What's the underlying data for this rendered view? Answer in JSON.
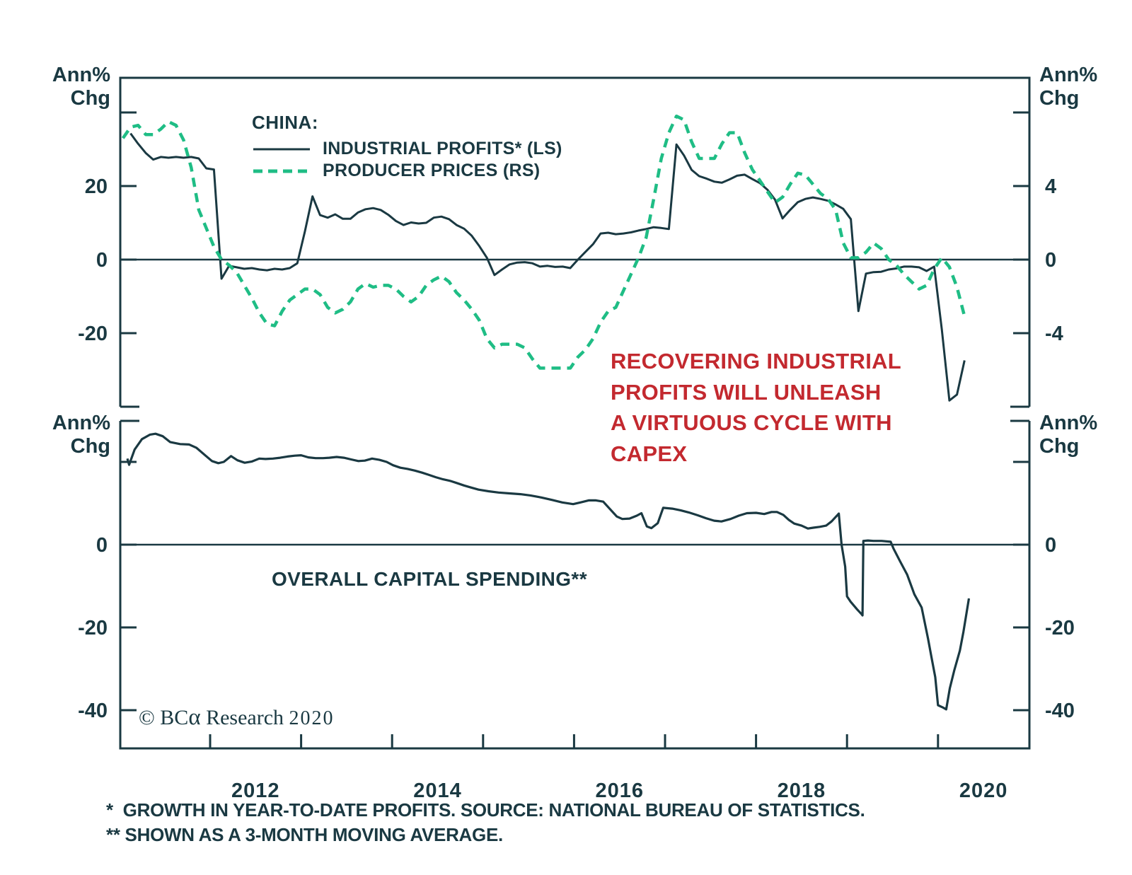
{
  "colors": {
    "ink": "#1a3942",
    "green": "#1fbd85",
    "red": "#c3292f"
  },
  "labels": {
    "axis_unit": {
      "l1": "Ann%",
      "l2": "Chg"
    },
    "legend": {
      "title": "CHINA:",
      "series1": "INDUSTRIAL PROFITS* (LS)",
      "series2": "PRODUCER PRICES (RS)"
    },
    "annotation": {
      "line1": "RECOVERING INDUSTRIAL",
      "line2": "PROFITS WILL UNLEASH",
      "line3": "A VIRTUOUS CYCLE WITH",
      "line4": "CAPEX"
    },
    "capex_label": "OVERALL CAPITAL SPENDING**",
    "copyright": {
      "prefix": "© BC",
      "alpha": "α",
      "suffix": " Research",
      "year": "2020"
    },
    "footnotes": {
      "line1": "*  GROWTH IN YEAR-TO-DATE PROFITS. SOURCE: NATIONAL BUREAU OF STATISTICS.",
      "line2": "** SHOWN AS A 3-MONTH MOVING AVERAGE."
    }
  },
  "chart_data": {
    "type": "line",
    "title": "CHINA: INDUSTRIAL PROFITS (LS) AND PRODUCER PRICES (RS); OVERALL CAPITAL SPENDING",
    "x_axis": {
      "range": [
        2010.99,
        2021.0
      ],
      "tick_years": [
        2012,
        2013,
        2014,
        2015,
        2016,
        2017,
        2018,
        2019,
        2020
      ],
      "labels": [
        "2012",
        "2014",
        "2016",
        "2018",
        "2020"
      ],
      "label_positions": [
        2012.5,
        2014.5,
        2016.5,
        2018.5,
        2020.5
      ]
    },
    "panels": [
      {
        "id": "top",
        "left_axis": {
          "label": "Ann% Chg",
          "units": "percent",
          "range": [
            -40,
            49.4
          ],
          "ticks": [
            {
              "value": 40,
              "label": ""
            },
            {
              "value": 20,
              "label": "20"
            },
            {
              "value": 0,
              "label": "0"
            },
            {
              "value": -20,
              "label": "-20"
            }
          ]
        },
        "right_axis": {
          "label": "Ann% Chg",
          "units": "percent",
          "range": [
            -8,
            9.9
          ],
          "ticks": [
            {
              "value": 8,
              "label": ""
            },
            {
              "value": 4,
              "label": "4"
            },
            {
              "value": 0,
              "label": "0"
            },
            {
              "value": -4,
              "label": "-4"
            }
          ]
        },
        "series": [
          {
            "name": "INDUSTRIAL PROFITS* (LS)",
            "axis": "left",
            "style": "solid",
            "color": "#1a3942",
            "width": 3,
            "start": 2011.125,
            "step_months": 1,
            "values": [
              34.3,
              31.5,
              29.0,
              27.2,
              27.9,
              27.7,
              27.9,
              27.7,
              27.9,
              27.5,
              24.8,
              24.5,
              -5.2,
              -1.7,
              -2.1,
              -2.5,
              -2.3,
              -2.7,
              -2.9,
              -2.5,
              -2.7,
              -2.3,
              -1.0,
              7.7,
              17.2,
              12.1,
              11.4,
              12.3,
              11.1,
              11.1,
              12.8,
              13.7,
              14.0,
              13.5,
              12.2,
              10.5,
              9.4,
              10.1,
              9.8,
              10.0,
              11.4,
              11.7,
              11.0,
              9.4,
              8.4,
              6.5,
              3.7,
              0.5,
              -4.2,
              -2.7,
              -1.3,
              -0.8,
              -0.7,
              -1.0,
              -1.9,
              -1.7,
              -2.0,
              -1.9,
              -2.3,
              0.0,
              2.1,
              4.2,
              7.1,
              7.3,
              6.9,
              7.1,
              7.4,
              7.9,
              8.3,
              8.8,
              8.6,
              8.3,
              31.3,
              28.3,
              24.4,
              22.7,
              22.0,
              21.2,
              20.9,
              21.8,
              22.8,
              23.1,
              21.9,
              20.8,
              19.0,
              16.3,
              11.2,
              13.5,
              15.6,
              16.5,
              16.9,
              16.5,
              16.0,
              15.0,
              13.8,
              11.0,
              -14.0,
              -3.8,
              -3.4,
              -3.3,
              -2.7,
              -2.4,
              -1.9,
              -1.9,
              -2.1,
              -3.1,
              -1.9,
              -19.0,
              -38.3,
              -36.7,
              -27.4
            ]
          },
          {
            "name": "PRODUCER PRICES (RS)",
            "axis": "right",
            "style": "dashed",
            "color": "#1fbd85",
            "width": 4.5,
            "start": 2011.042,
            "step_months": 1,
            "values": [
              6.6,
              7.2,
              7.3,
              6.8,
              6.8,
              7.1,
              7.5,
              7.3,
              6.5,
              5.0,
              2.7,
              1.7,
              0.7,
              0.0,
              -0.3,
              -0.7,
              -1.4,
              -2.1,
              -2.9,
              -3.5,
              -3.6,
              -2.8,
              -2.2,
              -1.9,
              -1.6,
              -1.6,
              -1.9,
              -2.6,
              -2.9,
              -2.7,
              -2.3,
              -1.6,
              -1.3,
              -1.5,
              -1.4,
              -1.4,
              -1.6,
              -2.0,
              -2.3,
              -2.0,
              -1.4,
              -1.1,
              -0.9,
              -1.2,
              -1.8,
              -2.2,
              -2.7,
              -3.3,
              -4.3,
              -4.8,
              -4.6,
              -4.6,
              -4.6,
              -4.8,
              -5.4,
              -5.9,
              -5.9,
              -5.9,
              -5.9,
              -5.9,
              -5.3,
              -4.9,
              -4.3,
              -3.4,
              -2.8,
              -2.6,
              -1.7,
              -0.8,
              0.1,
              1.2,
              3.3,
              5.5,
              6.9,
              7.8,
              7.6,
              6.4,
              5.5,
              5.5,
              5.5,
              6.3,
              6.9,
              6.9,
              5.8,
              4.9,
              4.3,
              3.7,
              3.1,
              3.4,
              4.1,
              4.7,
              4.6,
              4.1,
              3.6,
              3.3,
              2.7,
              0.9,
              0.1,
              0.1,
              0.4,
              0.9,
              0.6,
              0.0,
              -0.3,
              -0.8,
              -1.2,
              -1.6,
              -1.4,
              -0.5,
              0.1,
              -0.4,
              -1.5,
              -3.1
            ]
          }
        ]
      },
      {
        "id": "bottom",
        "left_axis": {
          "label": "Ann% Chg",
          "units": "percent",
          "range": [
            -49.2,
            29.9
          ],
          "ticks": [
            {
              "value": 20,
              "label": ""
            },
            {
              "value": 0,
              "label": "0"
            },
            {
              "value": -20,
              "label": "-20"
            },
            {
              "value": -40,
              "label": "-40"
            }
          ]
        },
        "right_axis": {
          "label": "Ann% Chg",
          "units": "percent",
          "range": [
            -49.2,
            29.9
          ],
          "ticks": [
            {
              "value": 20,
              "label": ""
            },
            {
              "value": 0,
              "label": "0"
            },
            {
              "value": -20,
              "label": "-20"
            },
            {
              "value": -40,
              "label": "-40"
            }
          ]
        },
        "series": [
          {
            "name": "OVERALL CAPITAL SPENDING**",
            "axis": "left",
            "style": "solid",
            "color": "#1a3942",
            "width": 3.2,
            "points": [
              [
                2011.09,
                20.8
              ],
              [
                2011.11,
                19.3
              ],
              [
                2011.17,
                23.0
              ],
              [
                2011.25,
                25.5
              ],
              [
                2011.34,
                26.6
              ],
              [
                2011.4,
                26.8
              ],
              [
                2011.48,
                26.2
              ],
              [
                2011.56,
                24.8
              ],
              [
                2011.67,
                24.3
              ],
              [
                2011.77,
                24.2
              ],
              [
                2011.85,
                23.4
              ],
              [
                2011.95,
                21.5
              ],
              [
                2012.02,
                20.2
              ],
              [
                2012.09,
                19.7
              ],
              [
                2012.15,
                20.0
              ],
              [
                2012.23,
                21.4
              ],
              [
                2012.3,
                20.4
              ],
              [
                2012.38,
                19.8
              ],
              [
                2012.46,
                20.1
              ],
              [
                2012.54,
                20.8
              ],
              [
                2012.61,
                20.7
              ],
              [
                2012.69,
                20.8
              ],
              [
                2012.77,
                21.0
              ],
              [
                2012.85,
                21.3
              ],
              [
                2012.93,
                21.5
              ],
              [
                2013.0,
                21.6
              ],
              [
                2013.08,
                21.1
              ],
              [
                2013.16,
                20.9
              ],
              [
                2013.24,
                20.9
              ],
              [
                2013.31,
                21.0
              ],
              [
                2013.39,
                21.2
              ],
              [
                2013.47,
                21.0
              ],
              [
                2013.55,
                20.6
              ],
              [
                2013.63,
                20.2
              ],
              [
                2013.7,
                20.3
              ],
              [
                2013.78,
                20.8
              ],
              [
                2013.86,
                20.5
              ],
              [
                2013.94,
                20.0
              ],
              [
                2014.01,
                19.2
              ],
              [
                2014.09,
                18.6
              ],
              [
                2014.17,
                18.3
              ],
              [
                2014.25,
                17.9
              ],
              [
                2014.33,
                17.4
              ],
              [
                2014.4,
                16.9
              ],
              [
                2014.48,
                16.3
              ],
              [
                2014.56,
                15.8
              ],
              [
                2014.64,
                15.4
              ],
              [
                2014.71,
                14.9
              ],
              [
                2014.79,
                14.3
              ],
              [
                2014.87,
                13.8
              ],
              [
                2014.95,
                13.3
              ],
              [
                2015.06,
                12.9
              ],
              [
                2015.17,
                12.6
              ],
              [
                2015.29,
                12.4
              ],
              [
                2015.41,
                12.2
              ],
              [
                2015.52,
                11.9
              ],
              [
                2015.64,
                11.4
              ],
              [
                2015.76,
                10.8
              ],
              [
                2015.87,
                10.2
              ],
              [
                2015.99,
                9.8
              ],
              [
                2016.07,
                10.2
              ],
              [
                2016.16,
                10.7
              ],
              [
                2016.24,
                10.7
              ],
              [
                2016.32,
                10.4
              ],
              [
                2016.39,
                8.7
              ],
              [
                2016.47,
                6.8
              ],
              [
                2016.53,
                6.2
              ],
              [
                2016.61,
                6.3
              ],
              [
                2016.69,
                7.0
              ],
              [
                2016.74,
                7.6
              ],
              [
                2016.8,
                4.4
              ],
              [
                2016.85,
                4.0
              ],
              [
                2016.92,
                5.2
              ],
              [
                2016.98,
                8.9
              ],
              [
                2017.08,
                8.7
              ],
              [
                2017.17,
                8.3
              ],
              [
                2017.26,
                7.8
              ],
              [
                2017.36,
                7.1
              ],
              [
                2017.45,
                6.4
              ],
              [
                2017.54,
                5.8
              ],
              [
                2017.62,
                5.6
              ],
              [
                2017.72,
                6.2
              ],
              [
                2017.81,
                7.0
              ],
              [
                2017.9,
                7.6
              ],
              [
                2018.0,
                7.7
              ],
              [
                2018.09,
                7.4
              ],
              [
                2018.17,
                7.9
              ],
              [
                2018.23,
                7.9
              ],
              [
                2018.3,
                7.2
              ],
              [
                2018.36,
                6.0
              ],
              [
                2018.42,
                5.1
              ],
              [
                2018.5,
                4.6
              ],
              [
                2018.57,
                3.9
              ],
              [
                2018.63,
                4.1
              ],
              [
                2018.7,
                4.3
              ],
              [
                2018.77,
                4.6
              ],
              [
                2018.83,
                5.6
              ],
              [
                2018.88,
                6.8
              ],
              [
                2018.91,
                7.5
              ],
              [
                2018.94,
                0.0
              ],
              [
                2018.98,
                -5.3
              ],
              [
                2019.0,
                -12.5
              ],
              [
                2019.04,
                -13.8
              ],
              [
                2019.11,
                -15.6
              ],
              [
                2019.16,
                -16.8
              ],
              [
                2019.17,
                -17.1
              ],
              [
                2019.18,
                0.9
              ],
              [
                2019.23,
                1.0
              ],
              [
                2019.29,
                0.9
              ],
              [
                2019.38,
                0.9
              ],
              [
                2019.48,
                0.7
              ],
              [
                2019.51,
                -0.9
              ],
              [
                2019.58,
                -3.9
              ],
              [
                2019.66,
                -7.2
              ],
              [
                2019.74,
                -12.0
              ],
              [
                2019.82,
                -15.2
              ],
              [
                2019.89,
                -22.7
              ],
              [
                2019.93,
                -27.4
              ],
              [
                2019.97,
                -32.0
              ],
              [
                2020.0,
                -38.8
              ],
              [
                2020.05,
                -39.3
              ],
              [
                2020.09,
                -39.8
              ],
              [
                2020.13,
                -34.7
              ],
              [
                2020.18,
                -30.3
              ],
              [
                2020.24,
                -25.6
              ],
              [
                2020.28,
                -21.0
              ],
              [
                2020.34,
                -13.0
              ]
            ]
          }
        ]
      }
    ]
  }
}
